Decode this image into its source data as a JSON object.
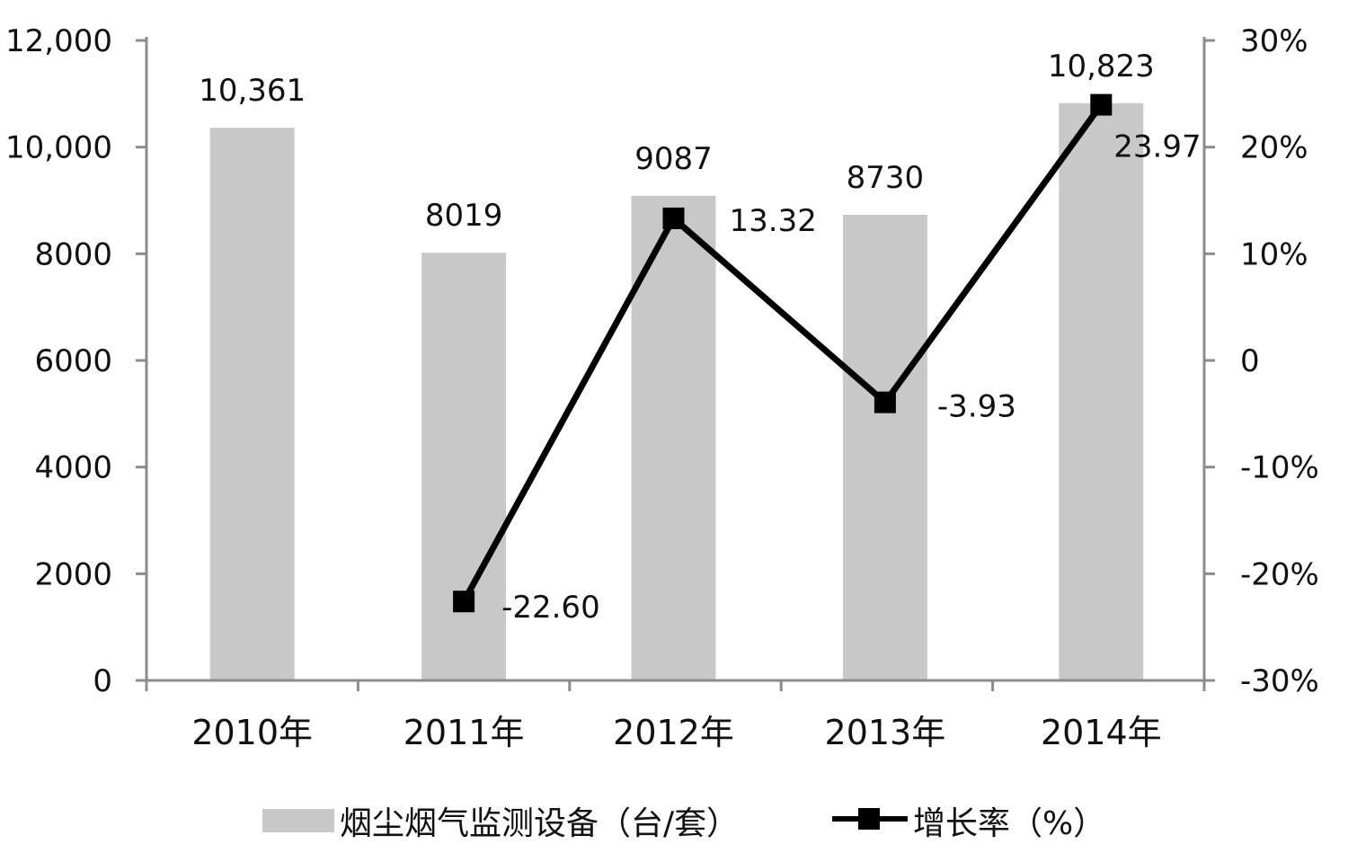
{
  "chart_data": {
    "type": "bar",
    "categories": [
      "2010年",
      "2011年",
      "2012年",
      "2013年",
      "2014年"
    ],
    "series": [
      {
        "name": "烟尘烟气监测设备（台/套）",
        "type": "bar",
        "axis": "left",
        "values": [
          10361,
          8019,
          9087,
          8730,
          10823
        ],
        "labels": [
          "10,361",
          "8019",
          "9087",
          "8730",
          "10,823"
        ],
        "color": "#c8c8c8"
      },
      {
        "name": "增长率（%）",
        "type": "line",
        "axis": "right",
        "values": [
          null,
          -22.6,
          13.32,
          -3.93,
          23.97
        ],
        "labels": [
          "",
          "-22.60",
          "13.32",
          "-3.93",
          "23.97"
        ],
        "color": "#000000"
      }
    ],
    "left_axis": {
      "ylim": [
        0,
        12000
      ],
      "ticks": [
        0,
        2000,
        4000,
        6000,
        8000,
        10000,
        12000
      ],
      "tick_labels": [
        "0",
        "2000",
        "4000",
        "6000",
        "8000",
        "10,000",
        "12,000"
      ]
    },
    "right_axis": {
      "ylim": [
        -30,
        30
      ],
      "ticks": [
        -30,
        -20,
        -10,
        0,
        10,
        20,
        30
      ],
      "tick_labels": [
        "-30%",
        "-20%",
        "-10%",
        "0",
        "10%",
        "20%",
        "30%"
      ]
    },
    "grid": false,
    "legend": "bottom",
    "title": "",
    "xlabel": "",
    "ylabel": ""
  }
}
